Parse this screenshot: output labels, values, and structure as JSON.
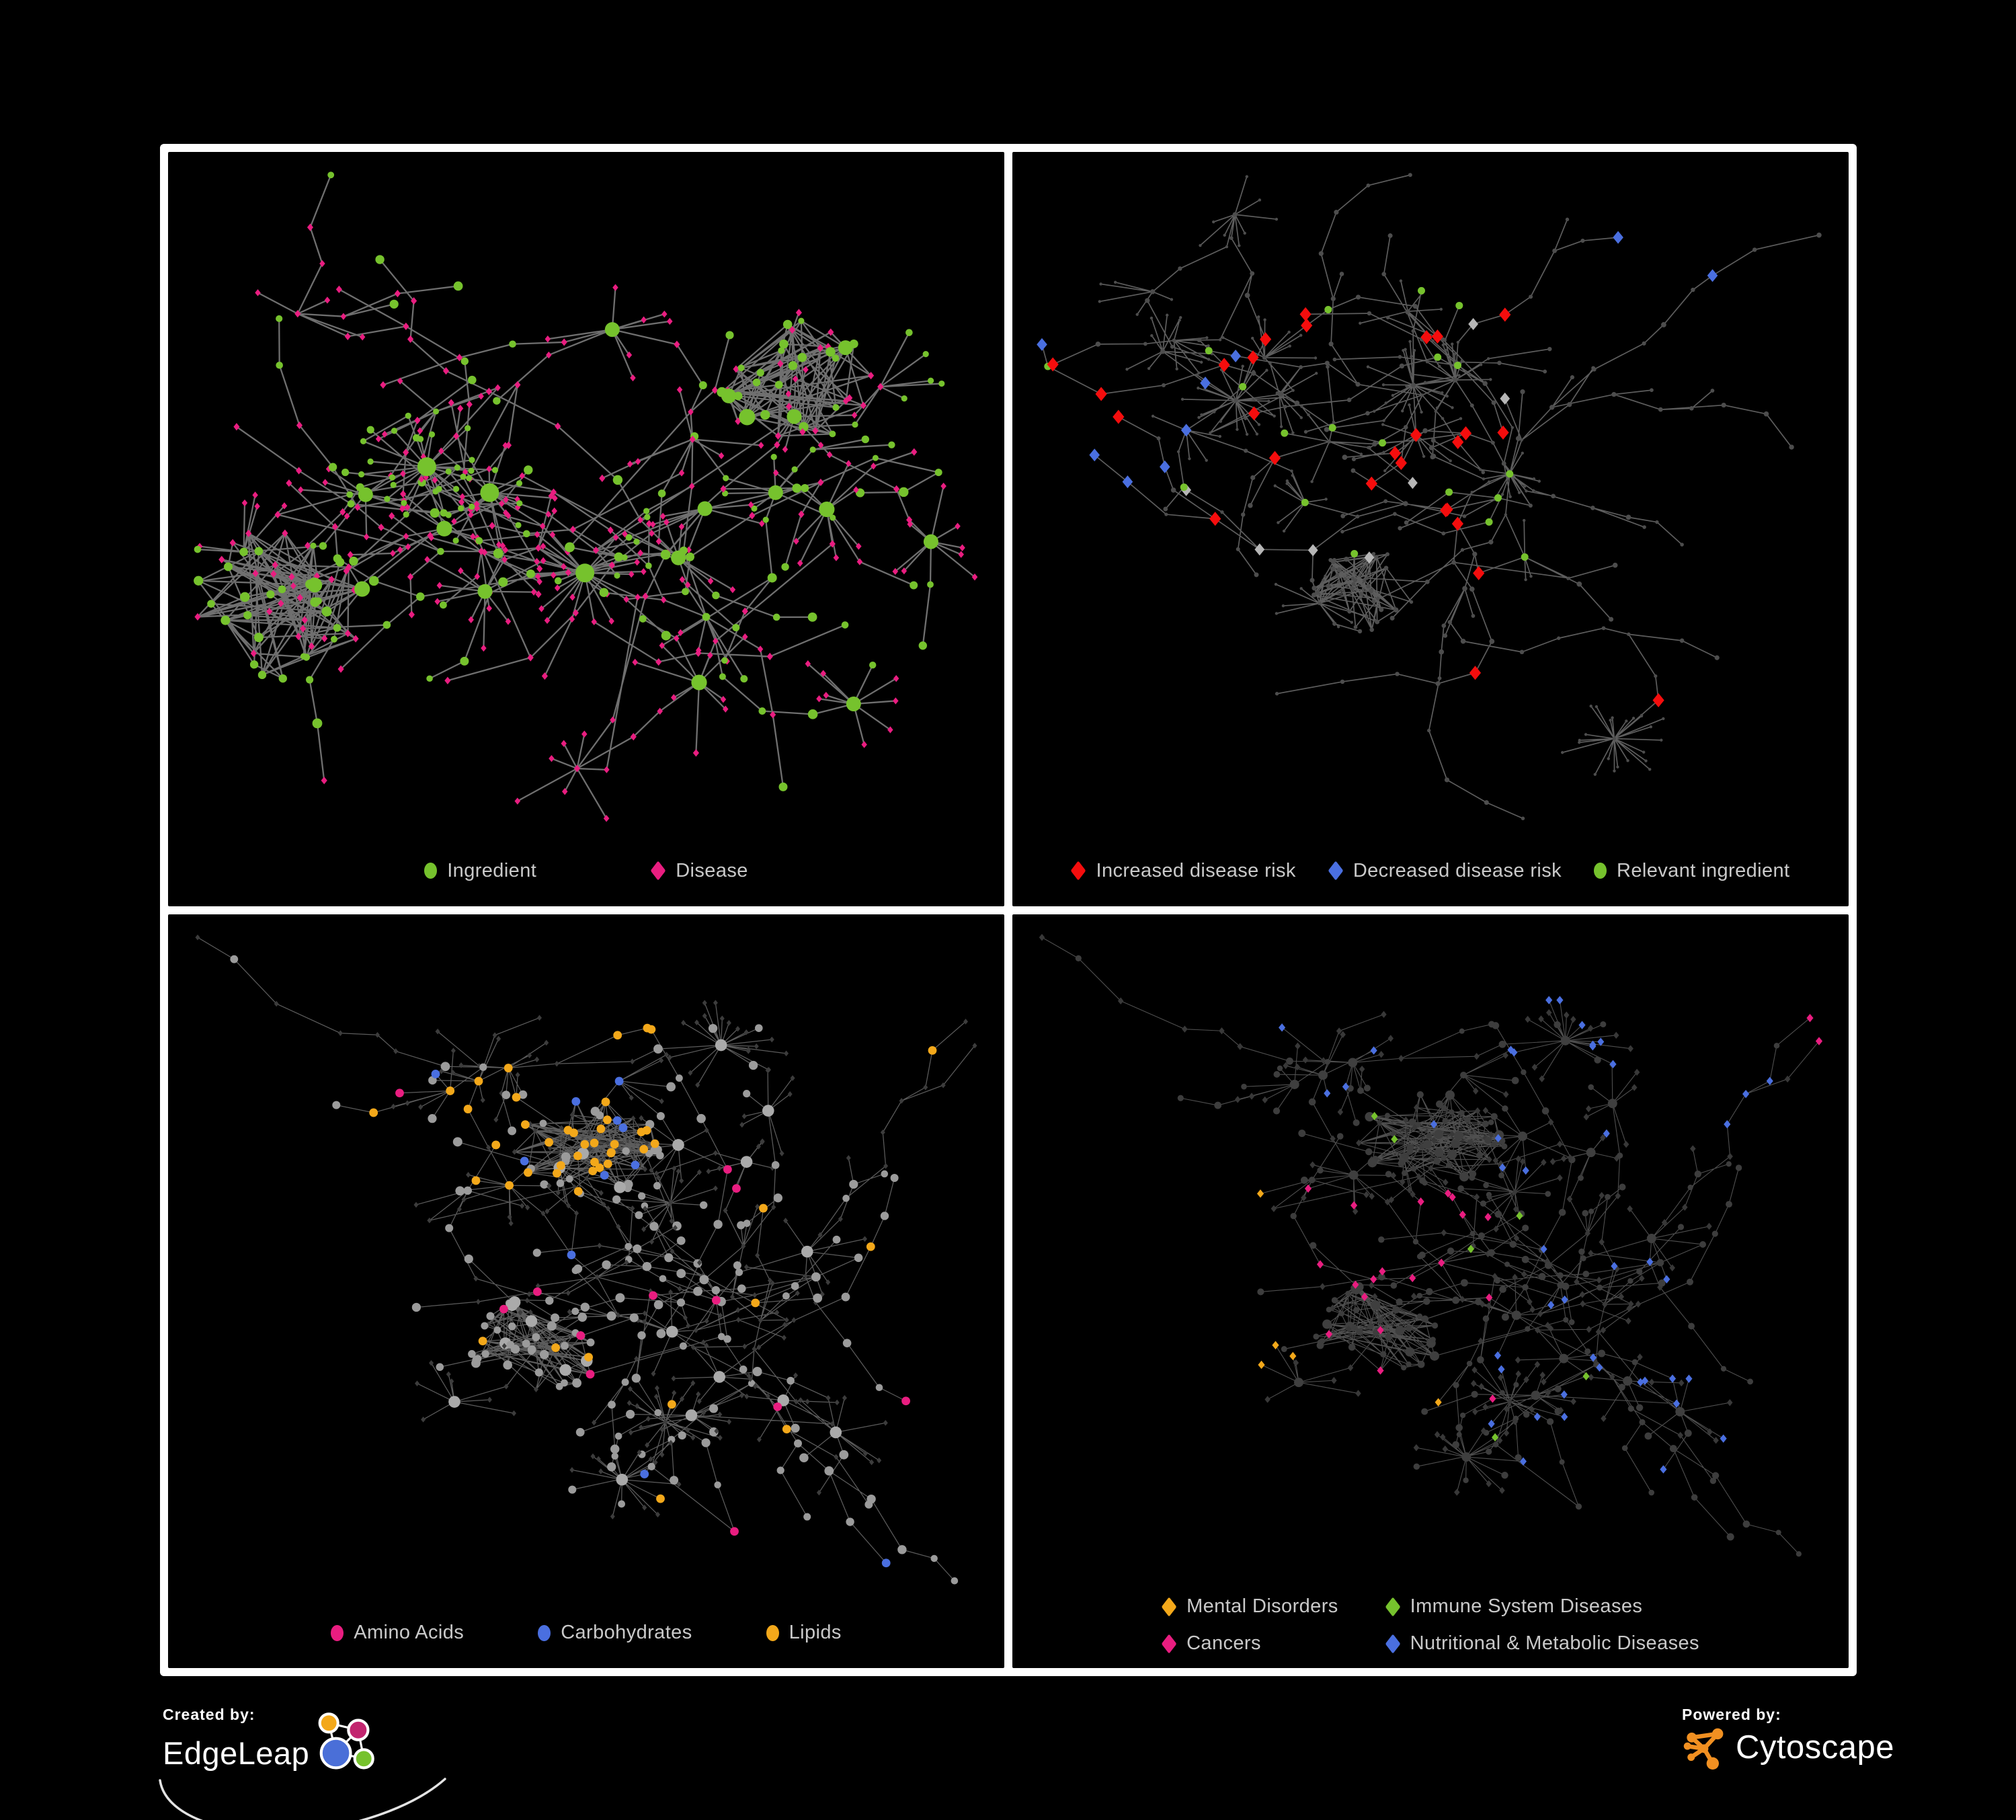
{
  "figure": {
    "background": "#000000",
    "frame_color": "#ffffff",
    "legend_text_color": "#c9c9c9"
  },
  "panels": [
    {
      "name": "ingredient-disease-network",
      "legend": [
        {
          "label": "Ingredient",
          "shape": "circle",
          "color": "#76c22d"
        },
        {
          "label": "Disease",
          "shape": "diamond",
          "color": "#e91d80"
        }
      ]
    },
    {
      "name": "disease-risk-network",
      "legend": [
        {
          "label": "Increased disease risk",
          "shape": "diamond",
          "color": "#f50d0d"
        },
        {
          "label": "Decreased disease risk",
          "shape": "diamond",
          "color": "#4a6fe0"
        },
        {
          "label": "Relevant ingredient",
          "shape": "circle",
          "color": "#76c22d"
        }
      ]
    },
    {
      "name": "nutrient-class-network",
      "legend": [
        {
          "label": "Amino Acids",
          "shape": "circle",
          "color": "#e91d80"
        },
        {
          "label": "Carbohydrates",
          "shape": "circle",
          "color": "#4a6fe0"
        },
        {
          "label": "Lipids",
          "shape": "circle",
          "color": "#f3a81a"
        }
      ]
    },
    {
      "name": "disease-class-network",
      "legend": [
        {
          "label": "Mental Disorders",
          "shape": "diamond",
          "color": "#f3a81a"
        },
        {
          "label": "Immune System Diseases",
          "shape": "diamond",
          "color": "#76c22d"
        },
        {
          "label": "Cancers",
          "shape": "diamond",
          "color": "#e91d80"
        },
        {
          "label": "Nutritional & Metabolic Diseases",
          "shape": "diamond",
          "color": "#4a6fe0"
        }
      ]
    }
  ],
  "footer": {
    "created_by": "Created by:",
    "edgeleap_wordmark": "EdgeLeap",
    "powered_by": "Powered by:",
    "cytoscape_wordmark": "Cytoscape"
  },
  "palette": {
    "green": "#76c22d",
    "pink": "#e91d80",
    "red": "#f50d0d",
    "blue": "#4a6fe0",
    "orange": "#f3a81a",
    "silver": "#b7b7b7",
    "edge_gray": "#7a7a7a",
    "cytoscape_orange": "#f19021",
    "edgeleap_blue": "#4a6fd8",
    "edgeleap_magenta": "#c2256f"
  }
}
